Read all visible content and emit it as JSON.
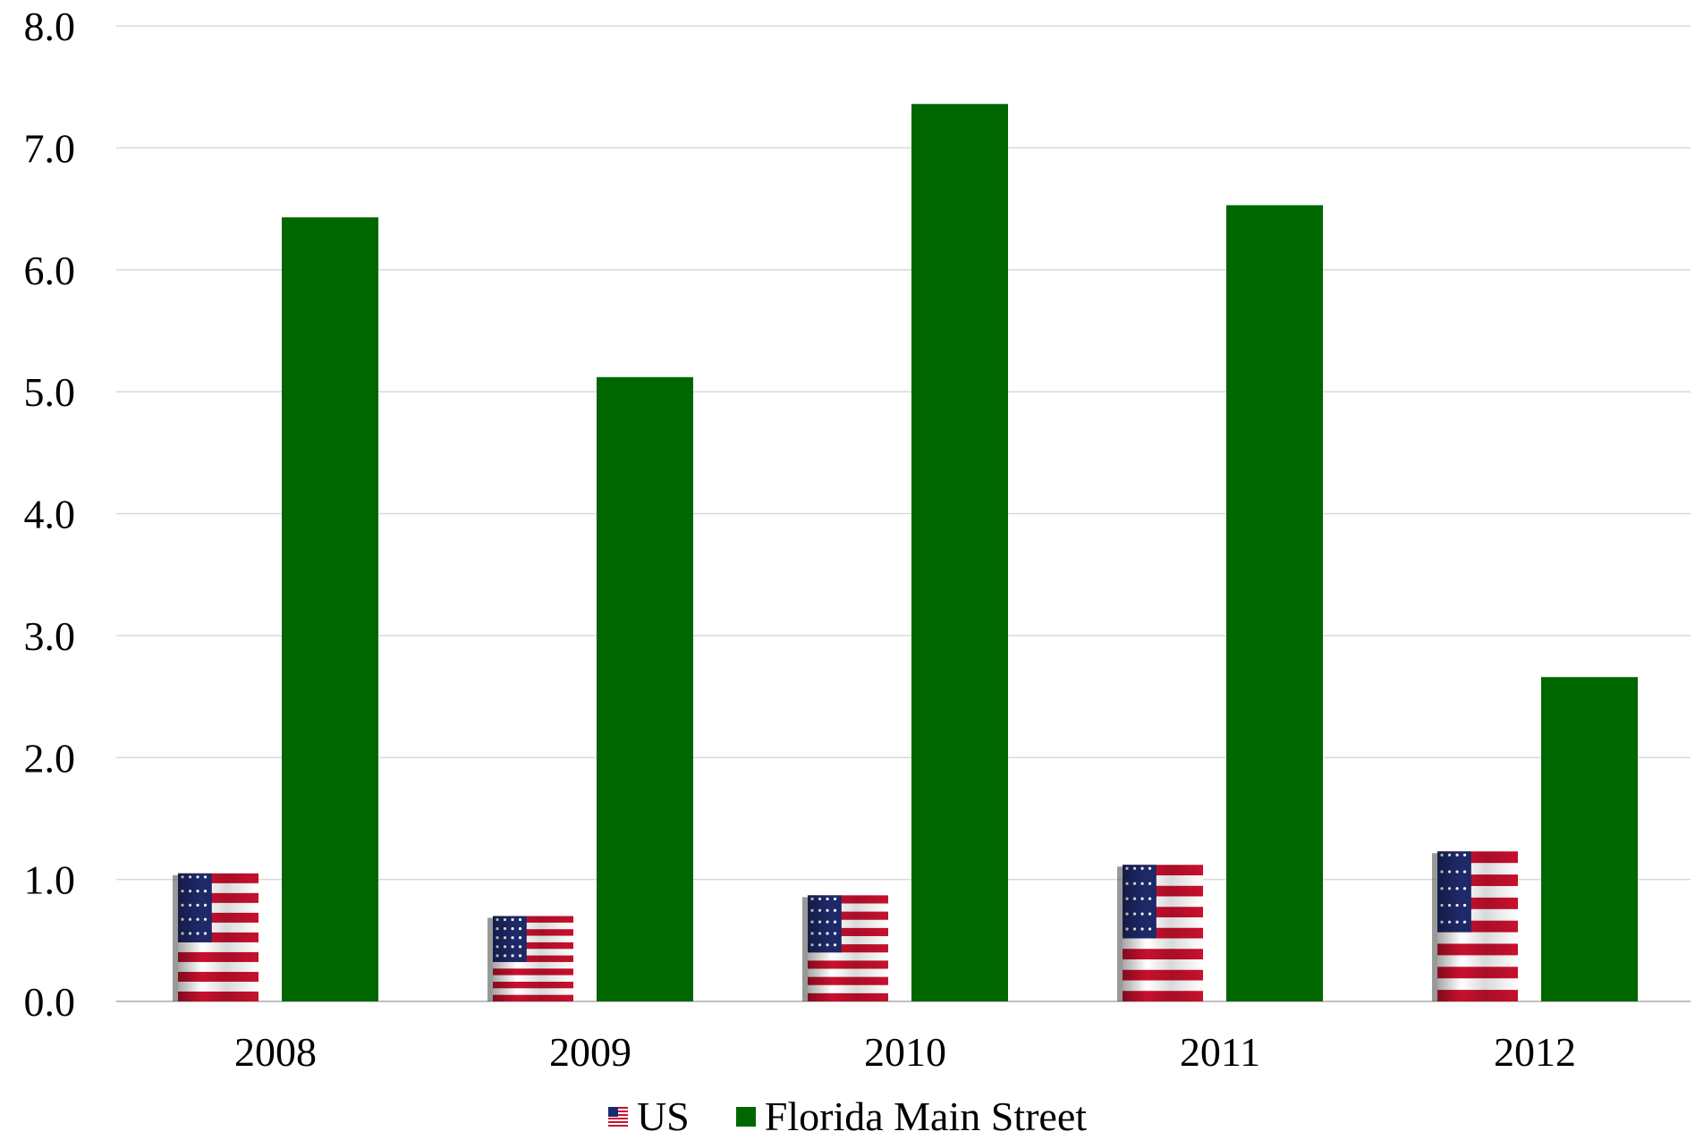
{
  "chart_data": {
    "type": "bar",
    "categories": [
      "2008",
      "2009",
      "2010",
      "2011",
      "2012"
    ],
    "series": [
      {
        "name": "US",
        "values": [
          1.05,
          0.7,
          0.87,
          1.12,
          1.23
        ],
        "color": "#b22234",
        "fill": "flag"
      },
      {
        "name": "Florida Main Street",
        "values": [
          6.43,
          5.12,
          7.36,
          6.53,
          2.66
        ],
        "color": "#006600"
      }
    ],
    "yticks": [
      "0.0",
      "1.0",
      "2.0",
      "3.0",
      "4.0",
      "5.0",
      "6.0",
      "7.0",
      "8.0"
    ],
    "ylim": [
      0,
      8
    ],
    "grid": true,
    "legend_position": "bottom"
  }
}
